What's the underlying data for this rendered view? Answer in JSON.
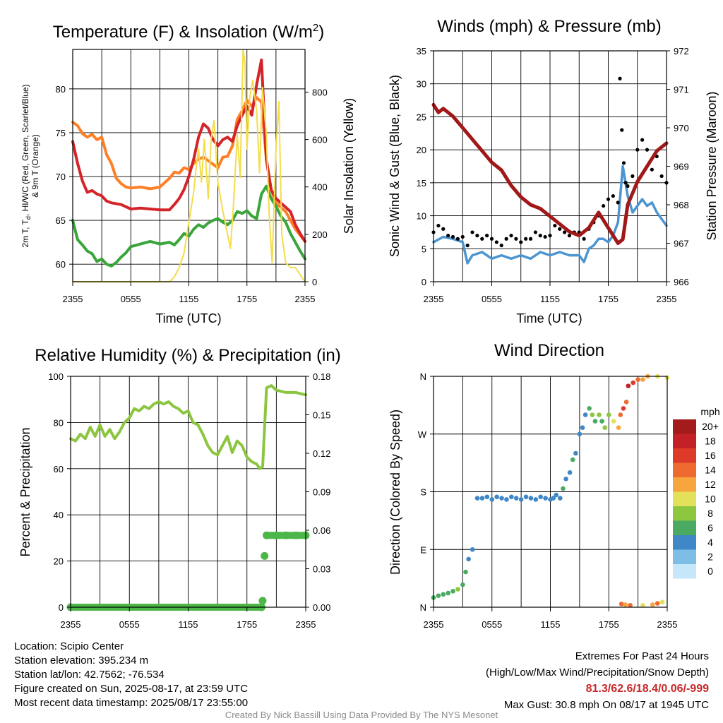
{
  "chart_data": [
    {
      "type": "line",
      "title": "Temperature (F) & Insolation (W/m",
      "title_sup": "2",
      "title_end": ")",
      "xlabel": "Time (UTC)",
      "ylabel_main": "2m T, T",
      "ylabel_sub": "d",
      "ylabel_rest": ", HI/WC (Red, Green, Scarlet/Blue)",
      "ylabel_line2": "& 9m T (Orange)",
      "ylabel_right": "Solar Insolation (Yellow)",
      "xticks": [
        "2355",
        "0555",
        "1155",
        "1755",
        "2355"
      ],
      "yticks_left": [
        "60",
        "65",
        "70",
        "75",
        "80"
      ],
      "yticks_right": [
        "0",
        "200",
        "400",
        "600",
        "800"
      ],
      "ylim_left": [
        58,
        84.5
      ],
      "ylim_right": [
        0,
        980
      ],
      "xlim_hours": [
        0,
        24
      ],
      "series": [
        {
          "color": "#ff7f27",
          "x": [
            0,
            0.5,
            1,
            1.5,
            2,
            2.5,
            3,
            3.5,
            4,
            4.5,
            5,
            5.5,
            6,
            7,
            8,
            9,
            10,
            10.5,
            11,
            11.5,
            12,
            12.5,
            13,
            13.5,
            14,
            15,
            15.5,
            16,
            16.5,
            17,
            17.5,
            18,
            18.5,
            19,
            19.5,
            20,
            20.5,
            21,
            21.5,
            22,
            22.5,
            23,
            24
          ],
          "y": [
            76.2,
            75.8,
            74.9,
            74.5,
            74.8,
            74.2,
            74.5,
            72.5,
            71.5,
            69.8,
            69.2,
            68.8,
            68.7,
            68.8,
            68.6,
            68.8,
            69.8,
            70.5,
            70.4,
            71.0,
            70.8,
            71.5,
            72.0,
            72.2,
            71.8,
            71.0,
            72.2,
            72.3,
            73.5,
            76.5,
            77.5,
            78.7,
            78.0,
            79.0,
            78.5,
            72.0,
            68.5,
            67.0,
            66.5,
            66.0,
            65.0,
            64.0,
            62.6
          ]
        },
        {
          "color": "#d4242a",
          "x": [
            0,
            0.5,
            1,
            1.5,
            2,
            2.5,
            3,
            3.5,
            4,
            5,
            6,
            7,
            8,
            9,
            10,
            10.5,
            11,
            11.5,
            12,
            12.5,
            13,
            13.5,
            14,
            14.5,
            15,
            15.5,
            16,
            16.5,
            17,
            17.5,
            18,
            18.5,
            19,
            19.5,
            20,
            20.5,
            21,
            21.5,
            22,
            22.5,
            23,
            23.5,
            24
          ],
          "y": [
            74.0,
            71.5,
            69.5,
            68.2,
            68.4,
            68.0,
            67.8,
            67.2,
            67.0,
            66.8,
            66.3,
            66.4,
            66.3,
            66.2,
            66.2,
            66.8,
            67.5,
            68.5,
            70.0,
            72.0,
            74.5,
            76.0,
            75.5,
            74.2,
            73.5,
            74.2,
            74.5,
            74.0,
            75.8,
            77.0,
            78.0,
            77.0,
            80.5,
            83.3,
            72.0,
            68.5,
            67.5,
            67.0,
            66.5,
            66.0,
            64.5,
            63.5,
            62.6
          ]
        },
        {
          "color": "#3aa53a",
          "x": [
            0,
            0.5,
            1,
            1.5,
            2,
            2.5,
            3,
            3.5,
            4,
            4.5,
            5,
            5.5,
            6,
            7,
            8,
            9,
            10,
            10.5,
            11,
            11.5,
            12,
            12.5,
            13,
            13.5,
            14,
            14.5,
            15,
            15.5,
            16,
            16.5,
            17,
            17.5,
            18,
            18.5,
            19,
            19.5,
            20,
            20.5,
            21,
            21.5,
            22,
            22.5,
            23,
            23.5,
            24
          ],
          "y": [
            65.0,
            62.8,
            62.2,
            61.5,
            61.2,
            60.3,
            60.6,
            60.0,
            59.8,
            60.2,
            60.8,
            61.3,
            62.0,
            62.3,
            62.6,
            62.3,
            62.5,
            62.2,
            62.8,
            63.5,
            63.2,
            64.0,
            64.5,
            64.2,
            64.7,
            65.0,
            65.2,
            64.8,
            64.5,
            65.0,
            66.0,
            65.8,
            66.1,
            65.5,
            65.2,
            68.0,
            68.9,
            67.5,
            66.6,
            65.5,
            64.8,
            63.5,
            62.5,
            61.5,
            60.6
          ]
        },
        {
          "color": "#f3dd4a",
          "x": [
            0,
            1,
            2,
            3,
            4,
            5,
            6,
            7,
            8,
            9,
            10,
            10.5,
            11,
            11.5,
            11.8,
            12,
            12.5,
            12.8,
            13,
            13.3,
            13.6,
            14,
            14.3,
            14.6,
            15,
            15.5,
            16,
            16.3,
            16.6,
            17,
            17.3,
            17.6,
            17.8,
            18,
            18.3,
            18.6,
            19,
            19.3,
            19.6,
            20,
            20.3,
            20.6,
            21,
            21.3,
            21.6,
            22,
            22.5,
            23,
            23.5,
            24
          ],
          "y": [
            0,
            0,
            0,
            0,
            0,
            0,
            0,
            0,
            0,
            0,
            0,
            20,
            60,
            120,
            200,
            250,
            380,
            500,
            560,
            420,
            600,
            350,
            600,
            680,
            420,
            300,
            200,
            140,
            320,
            620,
            440,
            980,
            920,
            560,
            780,
            850,
            720,
            460,
            820,
            620,
            280,
            80,
            560,
            760,
            200,
            80,
            60,
            60,
            30,
            0
          ]
        }
      ]
    },
    {
      "type": "line",
      "title": "Winds (mph) & Pressure (mb)",
      "xlabel": "Time (UTC)",
      "ylabel": "Sonic Wind & Gust (Blue, Black)",
      "ylabel_right": "Station Pressure (Maroon)",
      "xticks": [
        "2355",
        "0555",
        "1155",
        "1755",
        "2355"
      ],
      "yticks_left": [
        "0",
        "5",
        "10",
        "15",
        "20",
        "25",
        "30",
        "35"
      ],
      "yticks_right": [
        "966",
        "967",
        "968",
        "969",
        "970",
        "971",
        "972"
      ],
      "ylim_left": [
        0,
        35
      ],
      "ylim_right": [
        966,
        972
      ],
      "xlim_hours": [
        0,
        24
      ],
      "series": [
        {
          "name": "wind",
          "color": "#4c95d0",
          "x": [
            0,
            1,
            2,
            3,
            3.5,
            4,
            5,
            6,
            7,
            8,
            9,
            10,
            11,
            12,
            13,
            14,
            15,
            15.5,
            16,
            16.5,
            17,
            17.5,
            18,
            18.5,
            19,
            19.5,
            20,
            20.5,
            21,
            21.5,
            22,
            22.5,
            23,
            23.5,
            24
          ],
          "y": [
            6.0,
            6.8,
            6.5,
            6.0,
            2.8,
            4.0,
            4.5,
            3.5,
            4.0,
            3.5,
            4.0,
            3.5,
            4.5,
            4.0,
            4.5,
            4.0,
            4.0,
            3.0,
            5.0,
            5.5,
            6.5,
            6.5,
            6.0,
            7.0,
            9.0,
            17.5,
            13.0,
            10.5,
            11.5,
            12.5,
            11.5,
            12.0,
            10.5,
            9.5,
            8.5
          ]
        },
        {
          "name": "gust",
          "color": "#000000",
          "x": [
            0,
            0.5,
            1,
            1.5,
            2,
            2.5,
            3,
            3.5,
            4,
            4.5,
            5,
            5.5,
            6,
            6.5,
            7,
            7.5,
            8,
            8.5,
            9,
            9.5,
            10,
            10.5,
            11,
            11.5,
            12,
            12.5,
            13,
            13.5,
            14,
            14.5,
            15,
            15.5,
            16,
            16.5,
            17,
            17.5,
            18,
            18.5,
            19,
            19.2,
            19.4,
            19.6,
            19.8,
            20,
            20.5,
            21,
            21.5,
            22,
            22.5,
            23,
            23.5,
            24
          ],
          "y": [
            7.5,
            8.5,
            8.0,
            7.0,
            6.8,
            6.5,
            6.8,
            5.5,
            7.5,
            7.0,
            6.5,
            7.0,
            6.5,
            6.0,
            5.5,
            6.5,
            7.0,
            6.5,
            6.0,
            6.5,
            6.5,
            7.5,
            7.0,
            6.8,
            7.0,
            8.5,
            8.0,
            7.5,
            7.0,
            7.5,
            7.5,
            6.5,
            8.0,
            9.0,
            10.0,
            11.5,
            12.5,
            13.0,
            12.0,
            30.8,
            23.0,
            18.0,
            15.0,
            14.5,
            16.0,
            20.0,
            21.5,
            20.0,
            17.0,
            19.0,
            16.0,
            15.0
          ]
        },
        {
          "name": "pressure",
          "color": "#a01818",
          "x": [
            0,
            0.5,
            1,
            1.5,
            2,
            3,
            4,
            5,
            6,
            7,
            8,
            9,
            10,
            11,
            12,
            13,
            14,
            15,
            16,
            17,
            18,
            18.5,
            19,
            19.5,
            20,
            21,
            22,
            23,
            24
          ],
          "y": [
            970.6,
            970.4,
            970.5,
            970.4,
            970.3,
            970.0,
            969.7,
            969.4,
            969.1,
            968.9,
            968.5,
            968.2,
            968.0,
            967.9,
            967.7,
            967.5,
            967.3,
            967.2,
            967.4,
            967.8,
            967.4,
            967.2,
            967.0,
            967.1,
            968.0,
            968.6,
            969.0,
            969.4,
            969.6
          ]
        }
      ]
    },
    {
      "type": "line",
      "title": "Relative Humidity (%) & Precipitation (in)",
      "ylabel": "Percent & Precipitation",
      "xticks": [
        "2355",
        "0555",
        "1155",
        "1755",
        "2355"
      ],
      "yticks_left": [
        "0",
        "20",
        "40",
        "60",
        "80",
        "100"
      ],
      "yticks_right": [
        "0.00",
        "0.03",
        "0.06",
        "0.09",
        "0.12",
        "0.15",
        "0.18"
      ],
      "ylim_left": [
        0,
        100
      ],
      "ylim_right": [
        0,
        0.18
      ],
      "xlim_hours": [
        0,
        24
      ],
      "series": [
        {
          "name": "rh",
          "color": "#8cc63f",
          "x": [
            0,
            0.5,
            1,
            1.5,
            2,
            2.5,
            3,
            3.5,
            4,
            4.5,
            5,
            5.5,
            6,
            6.5,
            7,
            7.5,
            8,
            8.5,
            9,
            9.5,
            10,
            10.5,
            11,
            11.5,
            12,
            12.5,
            13,
            13.5,
            14,
            14.5,
            15,
            15.5,
            16,
            16.5,
            17,
            17.5,
            18,
            18.5,
            19,
            19.3,
            19.6,
            20,
            20.5,
            21,
            22,
            23,
            24
          ],
          "y": [
            73,
            72,
            75,
            73,
            78,
            74,
            79,
            74,
            77,
            73,
            76,
            80,
            82,
            86,
            85,
            87,
            86,
            88,
            89,
            88,
            89,
            87,
            86,
            84,
            85,
            80,
            79,
            75,
            70,
            67,
            66,
            70,
            74,
            67,
            72,
            70,
            65,
            63,
            62,
            60,
            61,
            95,
            96,
            94,
            93,
            93,
            92
          ]
        },
        {
          "name": "precip_in",
          "color": "#4cb748",
          "x": [
            0,
            19.5,
            19.6,
            19.8,
            20,
            21,
            22,
            23,
            24
          ],
          "y": [
            0.0,
            0.0,
            0.005,
            0.04,
            0.056,
            0.056,
            0.056,
            0.056,
            0.056
          ]
        }
      ]
    },
    {
      "type": "scatter",
      "title": "Wind Direction",
      "ylabel": "Direction (Colored By Speed)",
      "xticks": [
        "2355",
        "0555",
        "1155",
        "1755",
        "2355"
      ],
      "yticks": [
        "N",
        "E",
        "S",
        "W",
        "N"
      ],
      "ylim_degrees": [
        0,
        360
      ],
      "xlim_hours": [
        0,
        24
      ],
      "legend_title": "mph",
      "legend_labels": [
        "20+",
        "18",
        "16",
        "14",
        "12",
        "10",
        "8",
        "6",
        "4",
        "2",
        "0"
      ],
      "legend_colors": [
        "#a31b1b",
        "#c42126",
        "#de3a2a",
        "#ef6a2e",
        "#f7a53e",
        "#e3e15a",
        "#8dc63f",
        "#4aaa62",
        "#3f87c6",
        "#7dbde6",
        "#c6e6f9"
      ],
      "points_hours": [
        0,
        0.5,
        1,
        1.5,
        2,
        2.5,
        3,
        3.3,
        3.6,
        4,
        4.5,
        5,
        5.5,
        6,
        6.5,
        7,
        7.5,
        8,
        8.5,
        9,
        9.5,
        10,
        10.5,
        11,
        11.5,
        12,
        12.3,
        12.6,
        13,
        13.3,
        13.6,
        14,
        14.3,
        14.6,
        15,
        15.3,
        15.6,
        16,
        16.3,
        16.6,
        17,
        17.3,
        17.6,
        18,
        18.5,
        19,
        19.2,
        19.5,
        19.8,
        20,
        20.5,
        21,
        21.5,
        22,
        23,
        24,
        19.3,
        19.7,
        20.2,
        21.5,
        22.5,
        23,
        23.5
      ],
      "points_deg": [
        15,
        18,
        20,
        22,
        25,
        28,
        35,
        55,
        75,
        90,
        170,
        170,
        172,
        168,
        172,
        170,
        168,
        172,
        170,
        168,
        172,
        170,
        168,
        172,
        170,
        168,
        170,
        175,
        170,
        185,
        200,
        210,
        230,
        240,
        270,
        280,
        300,
        310,
        300,
        290,
        300,
        290,
        280,
        300,
        290,
        280,
        300,
        310,
        320,
        345,
        350,
        355,
        355,
        360,
        360,
        358,
        5,
        4,
        3,
        3,
        4,
        6,
        8
      ],
      "points_mph": [
        5,
        6,
        6,
        5,
        6,
        7,
        6,
        5,
        4,
        4,
        3,
        3,
        4,
        3,
        4,
        3,
        4,
        3,
        4,
        3,
        4,
        3,
        4,
        3,
        4,
        4,
        4,
        3,
        4,
        5,
        4,
        4,
        5,
        4,
        4,
        3,
        3,
        6,
        7,
        6,
        7,
        6,
        8,
        7,
        9,
        12,
        14,
        16,
        14,
        17,
        15,
        13,
        11,
        12,
        10,
        9,
        13,
        12,
        14,
        10,
        11,
        14,
        10
      ]
    }
  ],
  "footer": {
    "location": "Location: Scipio Center",
    "elevation": "Station elevation: 395.234 m",
    "latlon": "Station lat/lon: 42.7562; -76.534",
    "created": "Figure created on Sun, 2025-08-17, at 23:59 UTC",
    "recent": "Most recent data timestamp: 2025/08/17 23:55:00",
    "extremes_title": "Extremes For Past 24 Hours",
    "extremes_sub": "(High/Low/Max Wind/Precipitation/Snow Depth)",
    "extremes_values": "81.3/62.6/18.4/0.06/-999",
    "max_gust": "Max Gust: 30.8 mph On 08/17 at 1945 UTC",
    "credit": "Created By Nick Bassill Using Data Provided By The NYS Mesonet"
  }
}
